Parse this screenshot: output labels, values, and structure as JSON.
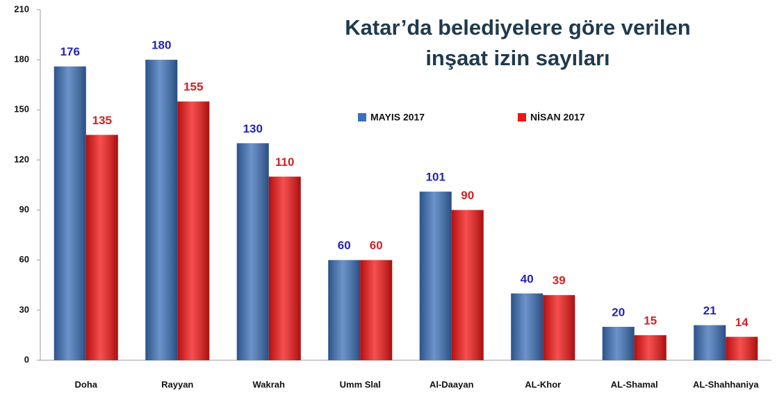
{
  "chart_data": {
    "type": "bar",
    "title": [
      "Katar’da belediyelere göre verilen",
      "inşaat izin sayıları"
    ],
    "categories": [
      "Doha",
      "Rayyan",
      "Wakrah",
      "Umm Slal",
      "Al-Daayan",
      "AL-Khor",
      "AL-Shamal",
      "AL-Shahhaniya"
    ],
    "series": [
      {
        "name": "MAYIS 2017",
        "color": "#3b6fb8",
        "label_color": "#2424b4",
        "values": [
          176,
          180,
          130,
          60,
          101,
          40,
          20,
          21
        ]
      },
      {
        "name": "NİSAN 2017",
        "color": "#f21414",
        "label_color": "#d12222",
        "values": [
          135,
          155,
          110,
          60,
          90,
          39,
          15,
          14
        ]
      }
    ],
    "ylim": [
      0,
      210
    ],
    "yticks": [
      0,
      30,
      60,
      90,
      120,
      150,
      180,
      210
    ],
    "grid": false
  }
}
